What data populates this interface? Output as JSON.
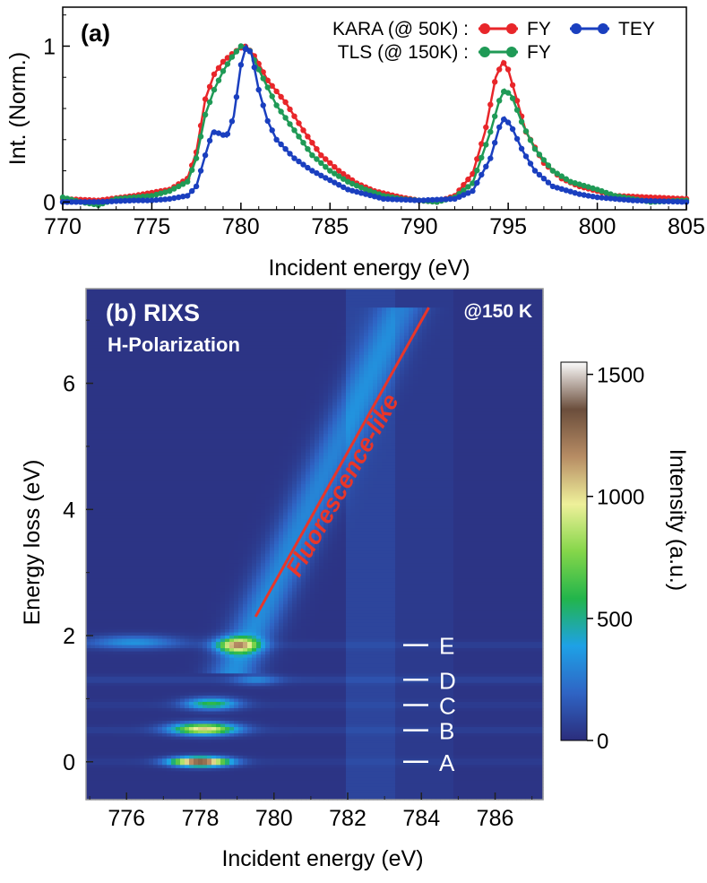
{
  "chart_data": [
    {
      "type": "line",
      "panel_label": "(a)",
      "xlabel": "Incident energy (eV)",
      "ylabel": "Int. (Norm.)",
      "xlim": [
        770,
        805
      ],
      "ylim": [
        -0.05,
        1.25
      ],
      "x_ticks": [
        770,
        775,
        780,
        785,
        790,
        795,
        800,
        805
      ],
      "y_ticks": [
        0,
        1
      ],
      "legend": {
        "placement": "top-right",
        "row1_label": "KARA (@   50K) :",
        "row2_label": "TLS (@ 150K) :",
        "fy1": "FY",
        "fy2": "FY",
        "tey": "TEY"
      },
      "series": [
        {
          "name": "FY",
          "group": "KARA (@   50K)",
          "color": "#e8262a",
          "points": [
            [
              770,
              0.02
            ],
            [
              772,
              0.01
            ],
            [
              774,
              0.04
            ],
            [
              776,
              0.08
            ],
            [
              777,
              0.15
            ],
            [
              777.5,
              0.32
            ],
            [
              778,
              0.66
            ],
            [
              778.5,
              0.82
            ],
            [
              779,
              0.9
            ],
            [
              779.5,
              0.95
            ],
            [
              780,
              0.99
            ],
            [
              780.3,
              1.0
            ],
            [
              780.8,
              0.93
            ],
            [
              781.5,
              0.78
            ],
            [
              782.5,
              0.64
            ],
            [
              783.5,
              0.46
            ],
            [
              784.5,
              0.3
            ],
            [
              785.5,
              0.2
            ],
            [
              786.5,
              0.12
            ],
            [
              787.5,
              0.07
            ],
            [
              789,
              0.03
            ],
            [
              790,
              0.01
            ],
            [
              791,
              0.0
            ],
            [
              792,
              0.04
            ],
            [
              793,
              0.18
            ],
            [
              793.7,
              0.45
            ],
            [
              794.3,
              0.8
            ],
            [
              794.7,
              0.9
            ],
            [
              795,
              0.85
            ],
            [
              795.5,
              0.65
            ],
            [
              796,
              0.45
            ],
            [
              797,
              0.25
            ],
            [
              798,
              0.15
            ],
            [
              799,
              0.1
            ],
            [
              800,
              0.07
            ],
            [
              801,
              0.04
            ],
            [
              803,
              0.03
            ],
            [
              805,
              0.02
            ]
          ]
        },
        {
          "name": "FY",
          "group": "TLS (@ 150K)",
          "color": "#1f9a56",
          "points": [
            [
              770,
              0.03
            ],
            [
              771,
              0.0
            ],
            [
              772,
              -0.02
            ],
            [
              773,
              0.02
            ],
            [
              775,
              0.04
            ],
            [
              776,
              0.07
            ],
            [
              777,
              0.13
            ],
            [
              777.5,
              0.28
            ],
            [
              778,
              0.56
            ],
            [
              778.5,
              0.72
            ],
            [
              779,
              0.84
            ],
            [
              779.5,
              0.93
            ],
            [
              780,
              1.0
            ],
            [
              780.5,
              0.97
            ],
            [
              781,
              0.85
            ],
            [
              782,
              0.62
            ],
            [
              783,
              0.46
            ],
            [
              784,
              0.3
            ],
            [
              785,
              0.2
            ],
            [
              786,
              0.13
            ],
            [
              787,
              0.08
            ],
            [
              788,
              0.04
            ],
            [
              789,
              0.02
            ],
            [
              790,
              0.01
            ],
            [
              791,
              0.0
            ],
            [
              792,
              0.03
            ],
            [
              793,
              0.12
            ],
            [
              794,
              0.45
            ],
            [
              794.5,
              0.65
            ],
            [
              794.8,
              0.72
            ],
            [
              795.2,
              0.68
            ],
            [
              795.8,
              0.5
            ],
            [
              796.5,
              0.34
            ],
            [
              797.5,
              0.2
            ],
            [
              798.5,
              0.13
            ],
            [
              800,
              0.08
            ],
            [
              801,
              0.04
            ],
            [
              802,
              0.02
            ],
            [
              803,
              0.0
            ],
            [
              805,
              0.01
            ]
          ]
        },
        {
          "name": "TEY",
          "group": "KARA (@   50K)",
          "color": "#1a3fbf",
          "points": [
            [
              770,
              0.0
            ],
            [
              772,
              0.0
            ],
            [
              774,
              0.01
            ],
            [
              775,
              0.01
            ],
            [
              776,
              0.02
            ],
            [
              777,
              0.04
            ],
            [
              777.5,
              0.1
            ],
            [
              778,
              0.3
            ],
            [
              778.4,
              0.45
            ],
            [
              778.8,
              0.44
            ],
            [
              779.2,
              0.42
            ],
            [
              779.6,
              0.55
            ],
            [
              780,
              0.88
            ],
            [
              780.3,
              1.0
            ],
            [
              780.6,
              0.95
            ],
            [
              781,
              0.72
            ],
            [
              781.5,
              0.52
            ],
            [
              782,
              0.4
            ],
            [
              783,
              0.28
            ],
            [
              784,
              0.2
            ],
            [
              785,
              0.14
            ],
            [
              786,
              0.08
            ],
            [
              787,
              0.05
            ],
            [
              788,
              0.02
            ],
            [
              790,
              0.01
            ],
            [
              792,
              0.02
            ],
            [
              793,
              0.07
            ],
            [
              794,
              0.28
            ],
            [
              794.5,
              0.48
            ],
            [
              794.8,
              0.54
            ],
            [
              795.2,
              0.48
            ],
            [
              795.8,
              0.33
            ],
            [
              796.5,
              0.2
            ],
            [
              797.5,
              0.1
            ],
            [
              799,
              0.05
            ],
            [
              800,
              0.03
            ],
            [
              802,
              0.01
            ],
            [
              805,
              0.0
            ]
          ]
        }
      ]
    },
    {
      "type": "heatmap",
      "panel_label": "(b) RIXS",
      "subtitle": "H-Polarization",
      "temperature": "@150 K",
      "xlabel": "Incident energy (eV)",
      "ylabel": "Energy loss (eV)",
      "xlim": [
        774.9,
        787.3
      ],
      "ylim": [
        -0.6,
        7.5
      ],
      "x_ticks": [
        776,
        778,
        780,
        782,
        784,
        786
      ],
      "y_ticks": [
        0,
        2,
        4,
        6
      ],
      "colorbar": {
        "label": "Intensity (a.u.)",
        "range": [
          0,
          1550
        ],
        "ticks": [
          0,
          500,
          1000,
          1500
        ],
        "colors": [
          "#2b2d7c",
          "#2f64c4",
          "#1ea1e6",
          "#22b54b",
          "#85d64a",
          "#eef09a",
          "#b78c64",
          "#6b4e3c",
          "#fbfbfb"
        ]
      },
      "annotation": {
        "text": "Fluorescence-like",
        "color": "#e8362a",
        "line_start": [
          779.5,
          2.3
        ],
        "line_end": [
          784.2,
          7.2
        ]
      },
      "features": [
        {
          "label": "A",
          "loss": 0.0
        },
        {
          "label": "B",
          "loss": 0.5
        },
        {
          "label": "C",
          "loss": 0.9
        },
        {
          "label": "D",
          "loss": 1.3
        },
        {
          "label": "E",
          "loss": 1.85
        }
      ],
      "blobs": [
        {
          "x": 778.0,
          "y": 0.0,
          "sx": 0.75,
          "sy": 0.07,
          "v": 1400
        },
        {
          "x": 778.1,
          "y": 0.52,
          "sx": 0.85,
          "sy": 0.09,
          "v": 980
        },
        {
          "x": 778.3,
          "y": 0.92,
          "sx": 0.7,
          "sy": 0.09,
          "v": 560
        },
        {
          "x": 779.5,
          "y": 1.3,
          "sx": 0.6,
          "sy": 0.08,
          "v": 240
        },
        {
          "x": 779.0,
          "y": 1.85,
          "sx": 0.55,
          "sy": 0.12,
          "v": 900
        },
        {
          "x": 776.2,
          "y": 1.9,
          "sx": 1.2,
          "sy": 0.1,
          "v": 300
        }
      ]
    }
  ]
}
